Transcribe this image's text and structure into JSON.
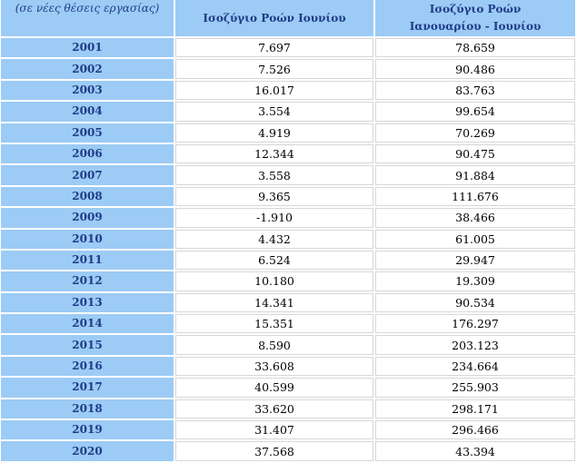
{
  "header": {
    "unit_note": "(σε νέες θέσεις εργασίας)",
    "col_june": "Ισοζύγιο Ροών Ιουνίου",
    "col_cum_line1": "Ισοζύγιο Ροών",
    "col_cum_line2": "Ιανουαρίου -  Ιουνίου"
  },
  "rows": [
    {
      "year": "2001",
      "june": "7.697",
      "cum": "78.659"
    },
    {
      "year": "2002",
      "june": "7.526",
      "cum": "90.486"
    },
    {
      "year": "2003",
      "june": "16.017",
      "cum": "83.763"
    },
    {
      "year": "2004",
      "june": "3.554",
      "cum": "99.654"
    },
    {
      "year": "2005",
      "june": "4.919",
      "cum": "70.269"
    },
    {
      "year": "2006",
      "june": "12.344",
      "cum": "90.475"
    },
    {
      "year": "2007",
      "june": "3.558",
      "cum": "91.884"
    },
    {
      "year": "2008",
      "june": "9.365",
      "cum": "111.676"
    },
    {
      "year": "2009",
      "june": "-1.910",
      "cum": "38.466"
    },
    {
      "year": "2010",
      "june": "4.432",
      "cum": "61.005"
    },
    {
      "year": "2011",
      "june": "6.524",
      "cum": "29.947"
    },
    {
      "year": "2012",
      "june": "10.180",
      "cum": "19.309"
    },
    {
      "year": "2013",
      "june": "14.341",
      "cum": "90.534"
    },
    {
      "year": "2014",
      "june": "15.351",
      "cum": "176.297"
    },
    {
      "year": "2015",
      "june": "8.590",
      "cum": "203.123"
    },
    {
      "year": "2016",
      "june": "33.608",
      "cum": "234.664"
    },
    {
      "year": "2017",
      "june": "40.599",
      "cum": "255.903"
    },
    {
      "year": "2018",
      "june": "33.620",
      "cum": "298.171"
    },
    {
      "year": "2019",
      "june": "31.407",
      "cum": "296.466"
    },
    {
      "year": "2020",
      "june": "37.568",
      "cum": "43.394"
    }
  ],
  "colors": {
    "header_bg": "#9ccbf5",
    "header_text": "#1f3c88",
    "cell_border": "#d7d7d7"
  }
}
